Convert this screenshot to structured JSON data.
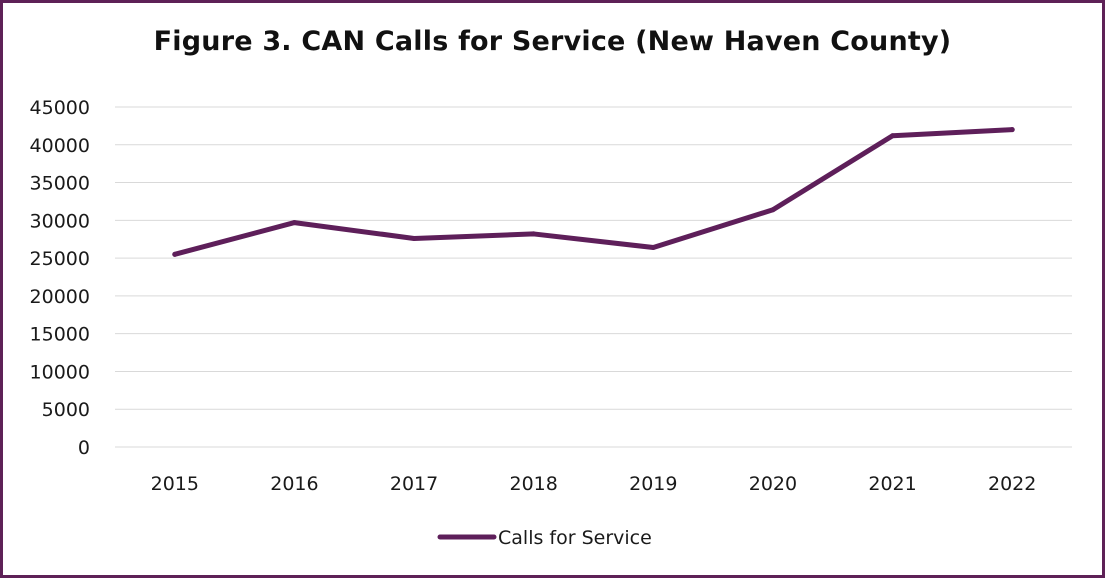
{
  "chart_data": {
    "type": "line",
    "title": "Figure 3. CAN Calls for Service (New Haven County)",
    "xlabel": "",
    "ylabel": "",
    "categories": [
      "2015",
      "2016",
      "2017",
      "2018",
      "2019",
      "2020",
      "2021",
      "2022"
    ],
    "series": [
      {
        "name": "Calls for Service",
        "values": [
          25500,
          29700,
          27600,
          28200,
          26400,
          31400,
          41200,
          42000
        ]
      }
    ],
    "ylim": [
      0,
      45000
    ],
    "yticks": [
      "0",
      "5000",
      "10000",
      "15000",
      "20000",
      "25000",
      "30000",
      "35000",
      "40000",
      "45000"
    ],
    "grid": true,
    "legend": "bottom",
    "colors": {
      "line": "#5e1f5a",
      "grid": "#d9d9d9",
      "frame": "#5e2157",
      "text": "#1a1a1a"
    }
  }
}
